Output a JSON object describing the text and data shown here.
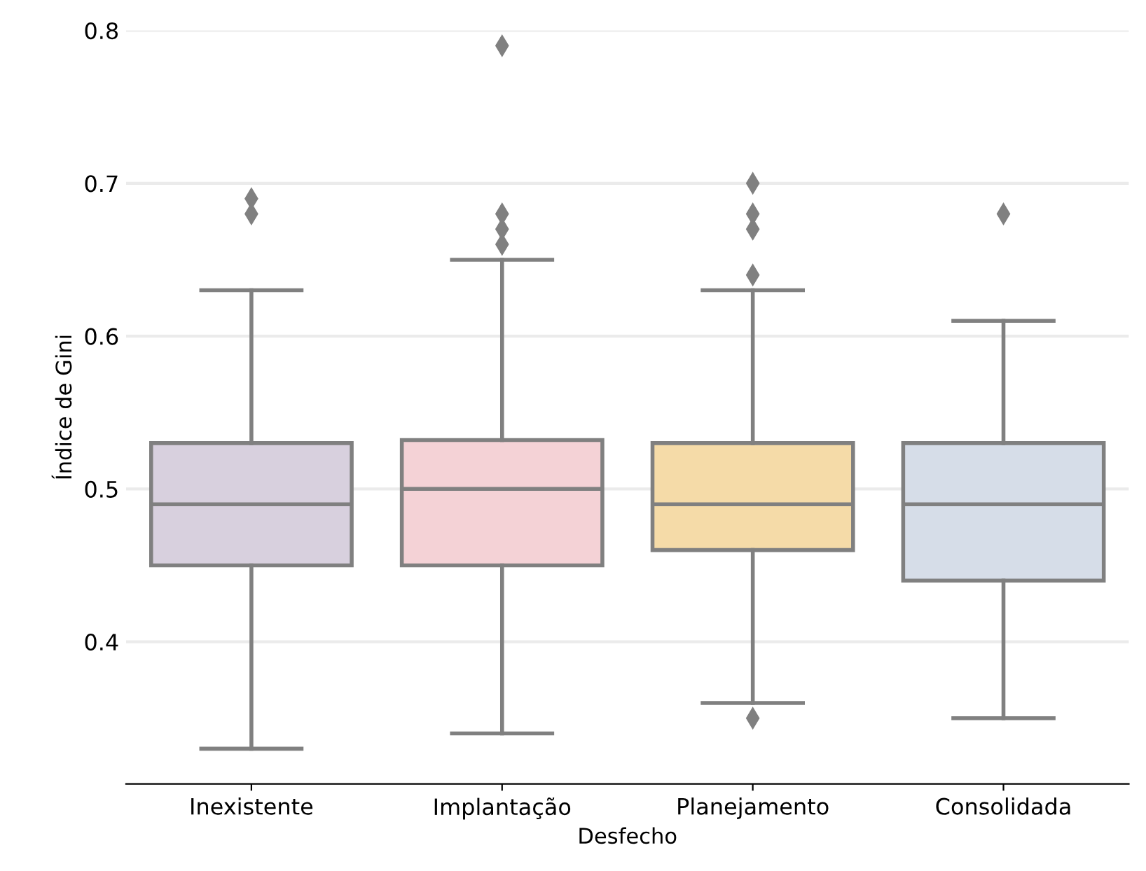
{
  "chart_data": {
    "type": "box",
    "xlabel": "Desfecho",
    "ylabel": "Índice de Gini",
    "categories": [
      "Inexistente",
      "Implantação",
      "Planejamento",
      "Consolidada"
    ],
    "colors": [
      "#d8d0de",
      "#f4d2d6",
      "#f5dba8",
      "#d6dde8"
    ],
    "boxes": [
      {
        "low": 0.33,
        "q1": 0.45,
        "median": 0.49,
        "q3": 0.53,
        "high": 0.63,
        "outliers": [
          0.69,
          0.68
        ]
      },
      {
        "low": 0.34,
        "q1": 0.45,
        "median": 0.5,
        "q3": 0.532,
        "high": 0.65,
        "outliers": [
          0.79,
          0.68,
          0.67,
          0.66
        ]
      },
      {
        "low": 0.36,
        "q1": 0.46,
        "median": 0.49,
        "q3": 0.53,
        "high": 0.63,
        "outliers": [
          0.7,
          0.68,
          0.67,
          0.64,
          0.35
        ]
      },
      {
        "low": 0.35,
        "q1": 0.44,
        "median": 0.49,
        "q3": 0.53,
        "high": 0.61,
        "outliers": [
          0.68
        ]
      }
    ],
    "ylim": [
      0.307,
      0.8
    ],
    "yticks": [
      0.4,
      0.5,
      0.6,
      0.7,
      0.8
    ],
    "grid": "y"
  }
}
